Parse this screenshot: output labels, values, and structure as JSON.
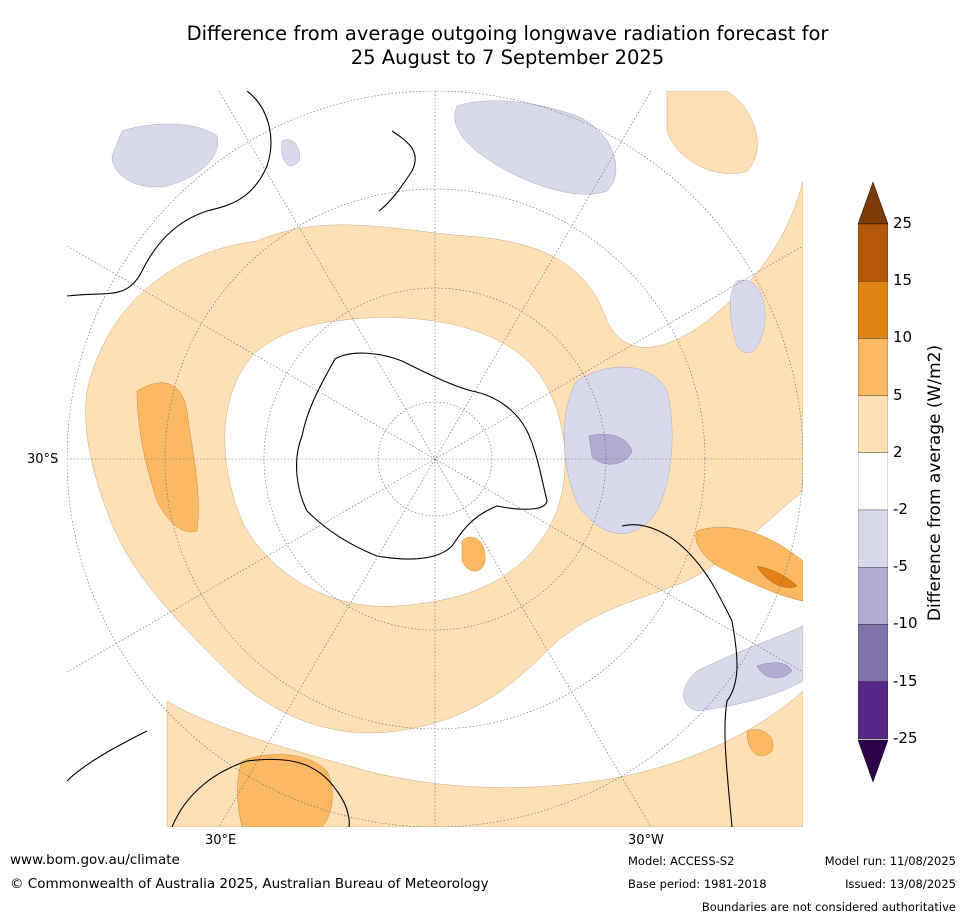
{
  "title": {
    "line1": "Difference from average outgoing longwave radiation forecast for",
    "line2": "25 August to 7 September 2025"
  },
  "axis_labels": {
    "lat": "30°S",
    "lon_left": "30°E",
    "lon_right": "30°W"
  },
  "colorbar": {
    "label": "Difference from average (W/m2)",
    "ticks": [
      "25",
      "15",
      "10",
      "5",
      "2",
      "-2",
      "-5",
      "-10",
      "-15",
      "-25"
    ],
    "bins": [
      {
        "range": ">25",
        "color": "#7f3b08"
      },
      {
        "range": "15 to 25",
        "color": "#b35806"
      },
      {
        "range": "10 to 15",
        "color": "#e08214"
      },
      {
        "range": "5 to 10",
        "color": "#fdb863"
      },
      {
        "range": "2 to 5",
        "color": "#fee0b6"
      },
      {
        "range": "-2 to 2",
        "color": "#ffffff"
      },
      {
        "range": "-5 to -2",
        "color": "#d8daeb"
      },
      {
        "range": "-10 to -5",
        "color": "#b2abd2"
      },
      {
        "range": "-15 to -10",
        "color": "#8073ac"
      },
      {
        "range": "-25 to -15",
        "color": "#542788"
      },
      {
        "range": "<-25",
        "color": "#2d004b"
      }
    ]
  },
  "footer": {
    "website": "www.bom.gov.au/climate",
    "copyright": "© Commonwealth of Australia 2025, Australian Bureau of Meteorology",
    "model": "Model: ACCESS-S2",
    "base_period": "Base period: 1981-2018",
    "model_run": "Model run: 11/08/2025",
    "issued": "Issued: 13/08/2025",
    "disclaimer": "Boundaries are not considered authoritative"
  }
}
